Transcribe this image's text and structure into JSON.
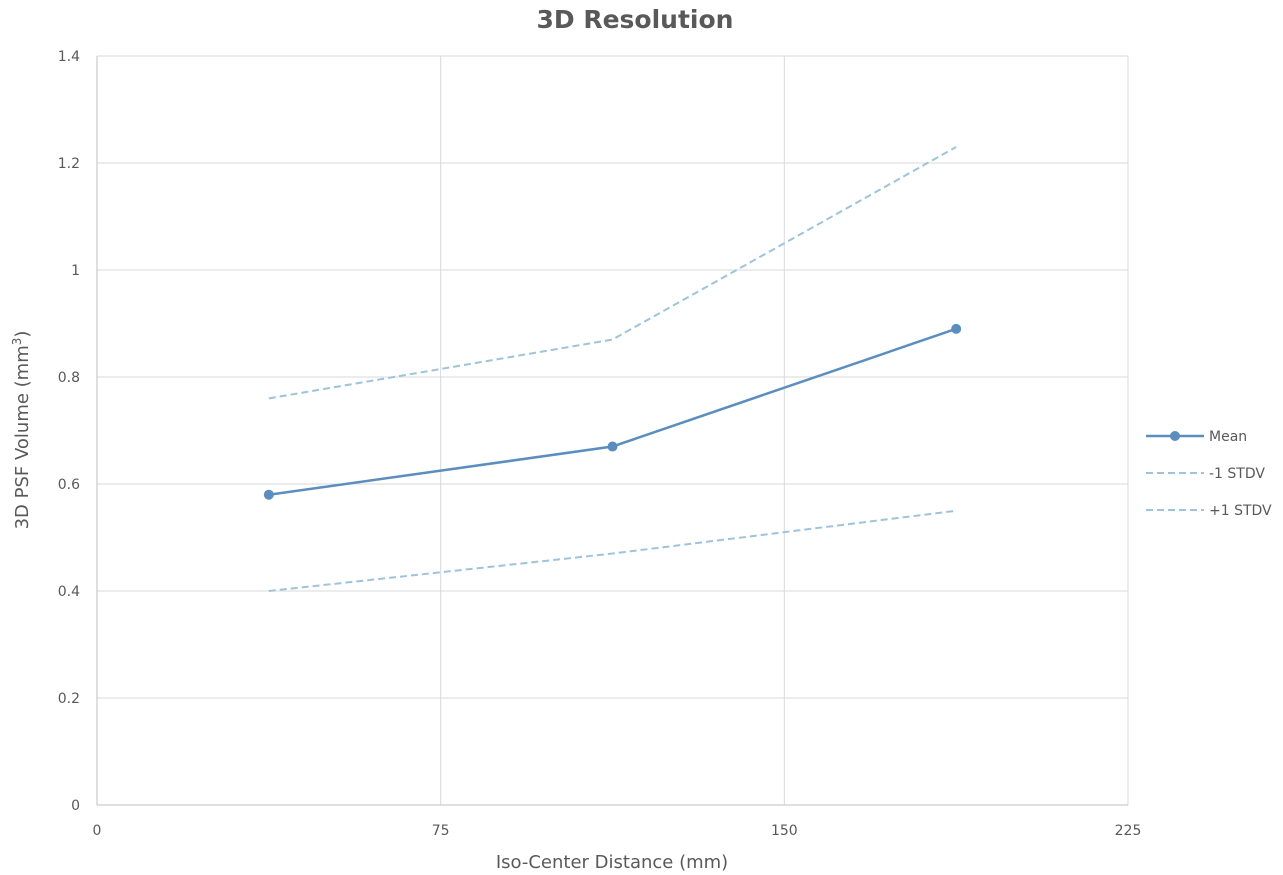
{
  "chart_data": {
    "type": "line",
    "title": "3D Resolution",
    "xlabel": "Iso-Center Distance (mm)",
    "ylabel_prefix": "3D PSF Volume (mm",
    "ylabel_sup": "3",
    "ylabel_suffix": ")",
    "xlim": [
      0,
      225
    ],
    "ylim": [
      0,
      1.4
    ],
    "x_ticks": [
      0,
      75,
      150,
      225
    ],
    "y_ticks": [
      0,
      0.2,
      0.4,
      0.6,
      0.8,
      1,
      1.2,
      1.4
    ],
    "x_tick_labels": [
      "0",
      "75",
      "150",
      "225"
    ],
    "y_tick_labels": [
      "0",
      "0.2",
      "0.4",
      "0.6",
      "0.8",
      "1",
      "1.2",
      "1.4"
    ],
    "grid": true,
    "legend_position": "right",
    "series": [
      {
        "name": "Mean",
        "x": [
          37.5,
          112.5,
          187.5
        ],
        "values": [
          0.58,
          0.67,
          0.89
        ],
        "color": "#5b8ebf",
        "style": "solid",
        "markers": true
      },
      {
        "name": "-1 STDV",
        "x": [
          37.5,
          112.5,
          187.5
        ],
        "values": [
          0.4,
          0.47,
          0.55
        ],
        "color": "#9ec3dc",
        "style": "dashed",
        "markers": false
      },
      {
        "name": "+1 STDV",
        "x": [
          37.5,
          112.5,
          187.5
        ],
        "values": [
          0.76,
          0.87,
          1.23
        ],
        "color": "#9ec3dc",
        "style": "dashed",
        "markers": false
      }
    ]
  }
}
